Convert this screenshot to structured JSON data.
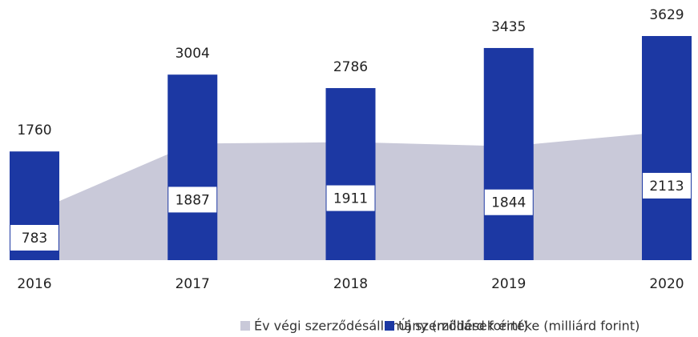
{
  "chart_data": {
    "type": "bar",
    "categories": [
      "2016",
      "2017",
      "2018",
      "2019",
      "2020"
    ],
    "series": [
      {
        "name": "Év végi szerződésállomány (milliárd forint)",
        "color": "#c9c9d9",
        "kind": "area",
        "values": [
          783,
          1887,
          1911,
          1844,
          2113
        ]
      },
      {
        "name": "Új szerződések értéke (milliárd forint)",
        "color": "#1c38a3",
        "kind": "bar",
        "values": [
          1760,
          3004,
          2786,
          3435,
          3629
        ]
      }
    ]
  }
}
